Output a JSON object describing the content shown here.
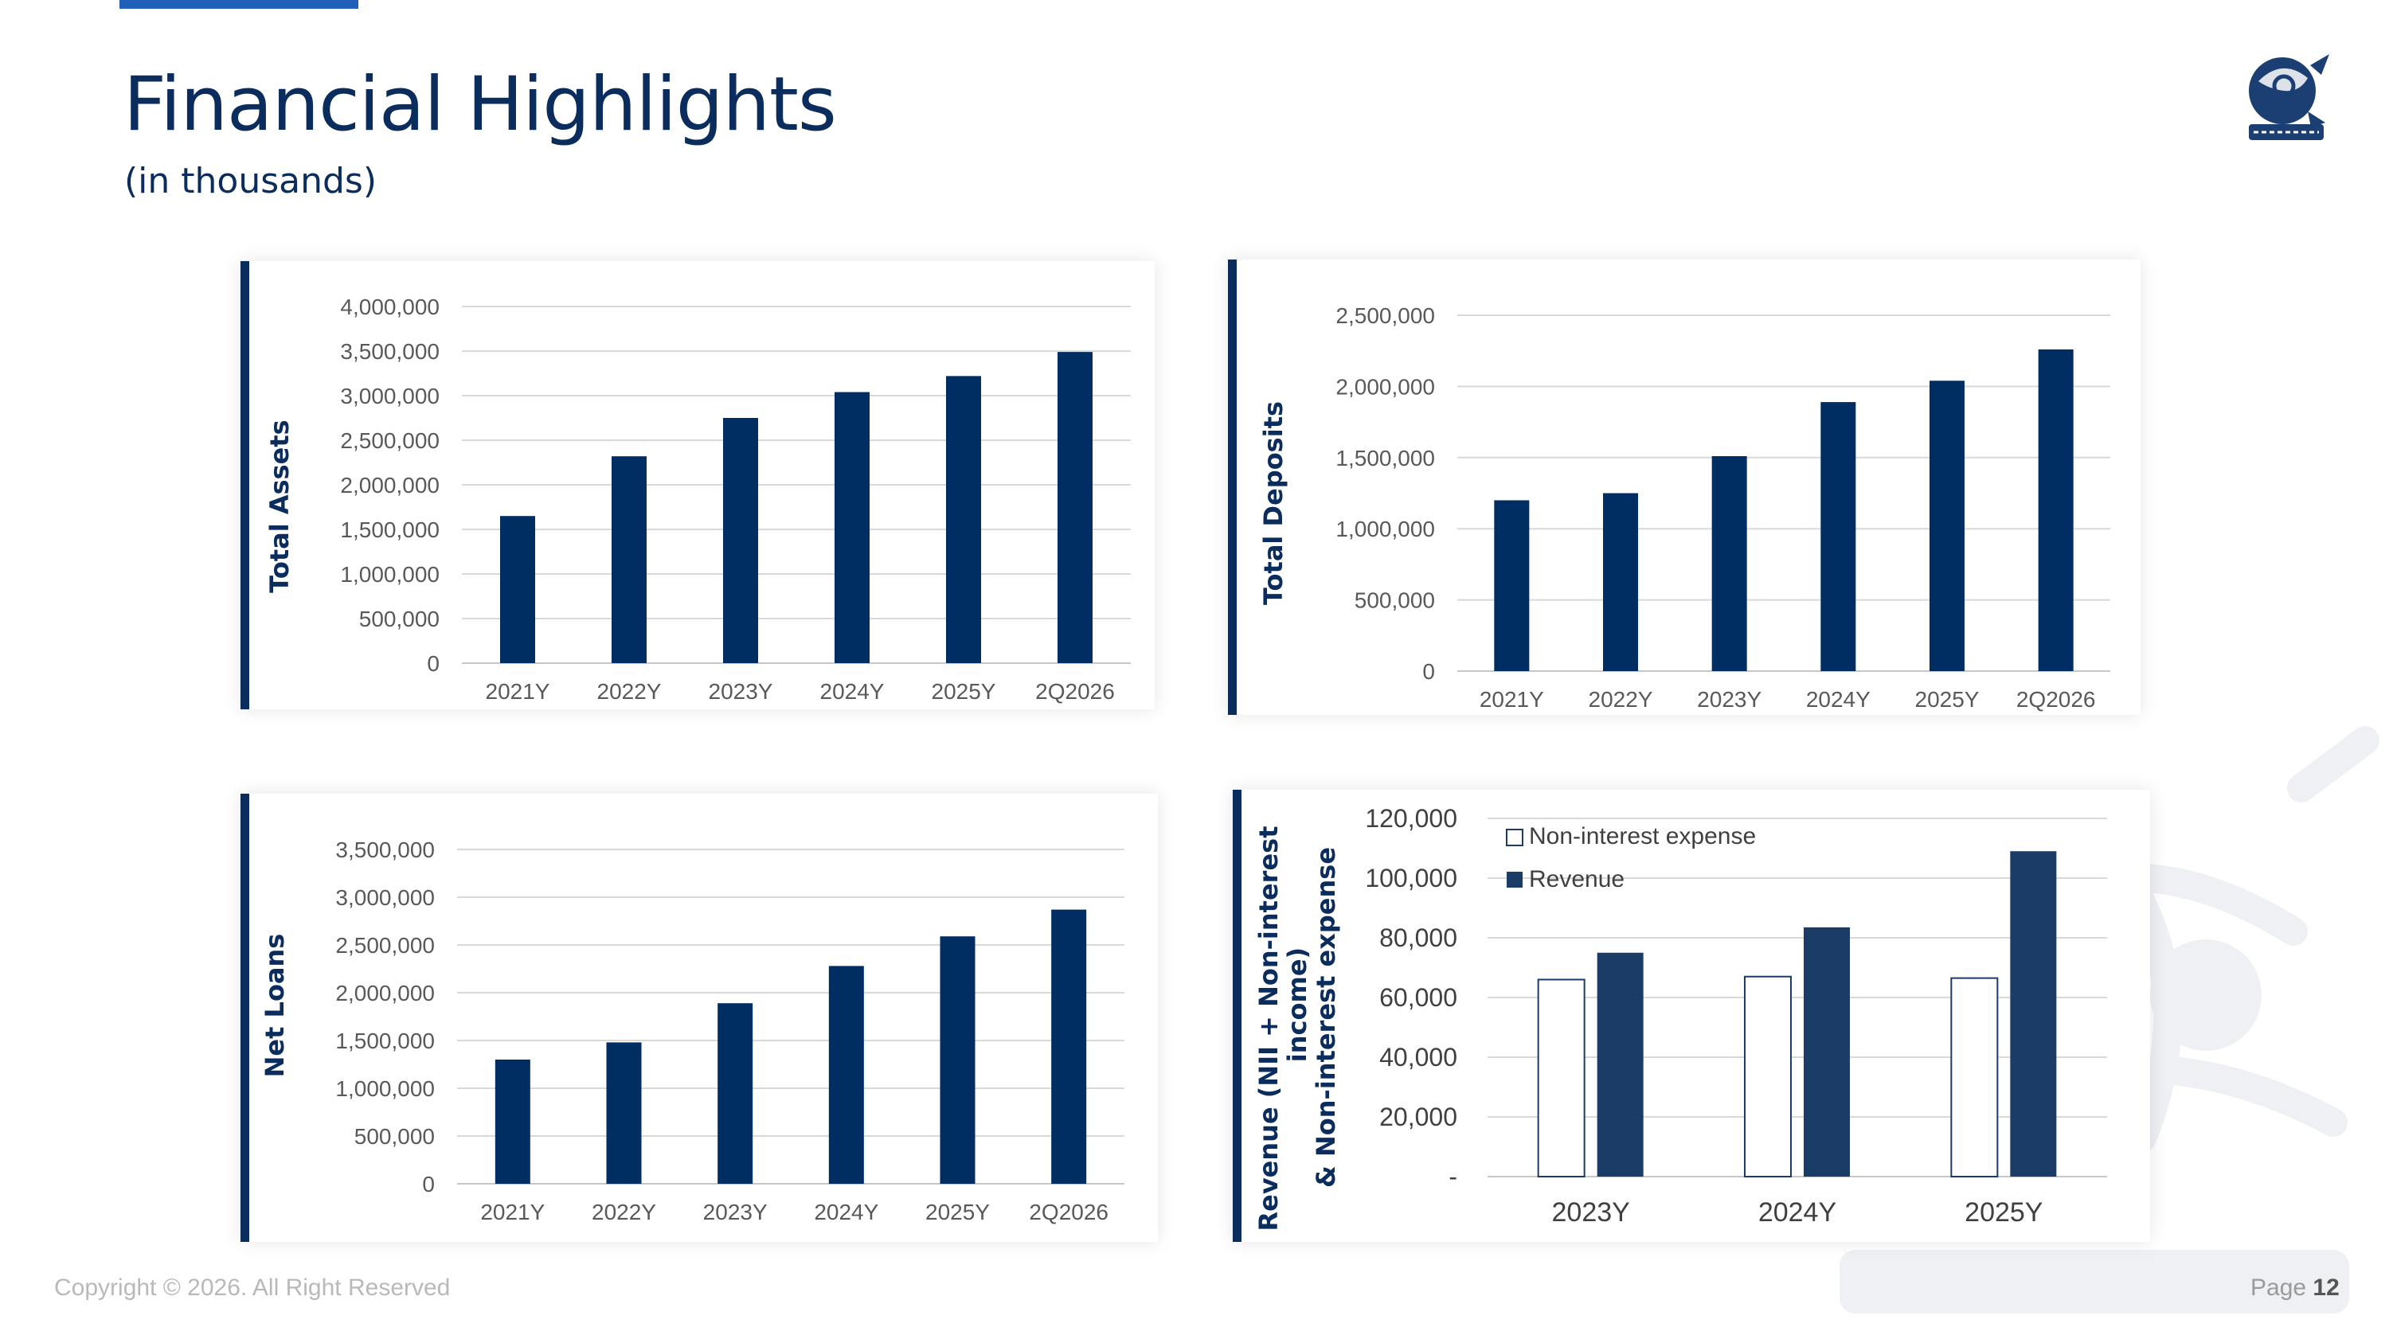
{
  "header": {
    "title": "Financial Highlights",
    "subtitle": "(in thousands)"
  },
  "footer": {
    "copyright": "Copyright © 2026. All Right Reserved",
    "page_label": "Page",
    "page_number": "12"
  },
  "colors": {
    "navy": "#002d62",
    "revenue": "#1b3c66",
    "accent": "#1f5fb8",
    "title": "#0b2d5e",
    "grid": "#d9d9d9"
  },
  "chart_data": [
    {
      "type": "bar",
      "ylabel": "Total Assets",
      "categories": [
        "2021Y",
        "2022Y",
        "2023Y",
        "2024Y",
        "2025Y",
        "2Q2026"
      ],
      "values": [
        1650000,
        2320000,
        2750000,
        3040000,
        3220000,
        3490000
      ],
      "ylim": [
        0,
        4000000
      ],
      "yticks": [
        0,
        500000,
        1000000,
        1500000,
        2000000,
        2500000,
        3000000,
        3500000,
        4000000
      ],
      "ytick_labels": [
        "0",
        "500,000",
        "1,000,000",
        "1,500,000",
        "2,000,000",
        "2,500,000",
        "3,000,000",
        "3,500,000",
        "4,000,000"
      ],
      "grid": true
    },
    {
      "type": "bar",
      "ylabel": "Total Deposits",
      "categories": [
        "2021Y",
        "2022Y",
        "2023Y",
        "2024Y",
        "2025Y",
        "2Q2026"
      ],
      "values": [
        1200000,
        1250000,
        1510000,
        1890000,
        2040000,
        2260000
      ],
      "ylim": [
        0,
        2500000
      ],
      "yticks": [
        0,
        500000,
        1000000,
        1500000,
        2000000,
        2500000
      ],
      "ytick_labels": [
        "0",
        "500,000",
        "1,000,000",
        "1,500,000",
        "2,000,000",
        "2,500,000"
      ],
      "grid": true
    },
    {
      "type": "bar",
      "ylabel": "Net Loans",
      "categories": [
        "2021Y",
        "2022Y",
        "2023Y",
        "2024Y",
        "2025Y",
        "2Q2026"
      ],
      "values": [
        1300000,
        1480000,
        1890000,
        2280000,
        2590000,
        2870000
      ],
      "ylim": [
        0,
        3500000
      ],
      "yticks": [
        0,
        500000,
        1000000,
        1500000,
        2000000,
        2500000,
        3000000,
        3500000
      ],
      "ytick_labels": [
        "0",
        "500,000",
        "1,000,000",
        "1,500,000",
        "2,000,000",
        "2,500,000",
        "3,000,000",
        "3,500,000"
      ],
      "grid": true
    },
    {
      "type": "bar",
      "ylabel": "Revenue (NII + Non-interest income) & Non-interest expense",
      "ylabel_lines": [
        "Revenue (NII + Non-interest",
        "income)",
        "& Non-interest expense"
      ],
      "categories": [
        "2023Y",
        "2024Y",
        "2025Y"
      ],
      "series": [
        {
          "name": "Non-interest expense",
          "values": [
            66000,
            67000,
            66500
          ]
        },
        {
          "name": "Revenue",
          "values": [
            75000,
            83500,
            109000
          ]
        }
      ],
      "ylim": [
        0,
        120000
      ],
      "yticks": [
        0,
        20000,
        40000,
        60000,
        80000,
        100000,
        120000
      ],
      "ytick_labels": [
        "-",
        "20,000",
        "40,000",
        "60,000",
        "80,000",
        "100,000",
        "120,000"
      ],
      "legend": "top-left",
      "grid": true
    }
  ]
}
